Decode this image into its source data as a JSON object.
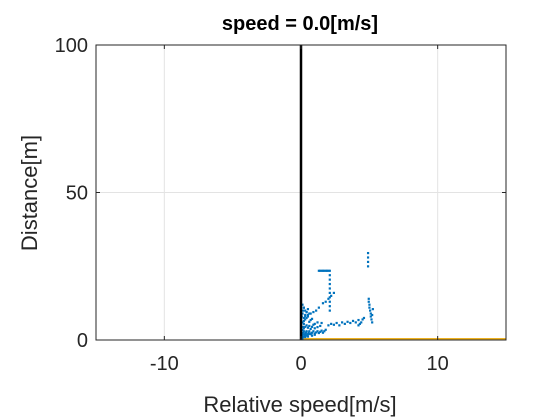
{
  "chart_data": {
    "type": "scatter",
    "title": "speed = 0.0[m/s]",
    "xlabel": "Relative speed[m/s]",
    "ylabel": "Distance[m]",
    "xlim": [
      -15,
      15
    ],
    "ylim": [
      0,
      100
    ],
    "xticks": [
      -10,
      0,
      10
    ],
    "yticks": [
      0,
      50,
      100
    ],
    "xtick_labels": [
      "-10",
      "0",
      "10"
    ],
    "ytick_labels": [
      "0",
      "50",
      "100"
    ],
    "grid": true,
    "colors": {
      "points": "#0072BD",
      "vertical_line": "#000000",
      "baseline": "#EDB120"
    },
    "reference_lines": {
      "vertical_x": 0,
      "baseline_y": 0,
      "baseline_x_range": [
        0,
        15
      ]
    },
    "series": [
      {
        "x": [
          0.05,
          0.1,
          0.15,
          0.2,
          0.1,
          0.25,
          0.3,
          0.35,
          0.4,
          0.45,
          0.5,
          0.55,
          0.6,
          0.7,
          0.8,
          0.9,
          1.0,
          1.1,
          1.2,
          1.3,
          1.4,
          1.5,
          1.6,
          1.7,
          1.8,
          0.2,
          0.3,
          0.4,
          0.5,
          0.6,
          0.7,
          0.8,
          0.9,
          1.0,
          1.2,
          1.4,
          0.1,
          0.2,
          0.3,
          0.4,
          0.5,
          0.6,
          0.7,
          0.8,
          1.0,
          1.2,
          1.5,
          2.0,
          2.2,
          2.4,
          2.6,
          2.8,
          3.0,
          3.2,
          3.4,
          3.6,
          3.8,
          4.0,
          4.2,
          0.1,
          0.15,
          0.2,
          0.3,
          0.4,
          0.5,
          0.6,
          0.1,
          0.2,
          0.3,
          0.4,
          0.2,
          0.3,
          0.5,
          0.7,
          0.9,
          1.1,
          1.3,
          1.6,
          1.8,
          2.0,
          2.2,
          2.4,
          1.3,
          1.4,
          1.5,
          1.6,
          1.7,
          1.8,
          1.9,
          2.0,
          2.1,
          2.1,
          2.1,
          2.1,
          2.1,
          2.1,
          2.1,
          2.1,
          2.1,
          2.1,
          4.9,
          4.9,
          4.9,
          4.9,
          4.95,
          4.95,
          5.0,
          5.0,
          5.05,
          5.1,
          5.1,
          5.15,
          5.2,
          5.2,
          5.25,
          4.2,
          4.3,
          4.4,
          4.5,
          4.6,
          0.05,
          0.1,
          0.05,
          0.1,
          0.05,
          0.1,
          0.05,
          0.1,
          0.15,
          0.2,
          0.05,
          0.1,
          0.3,
          0.5,
          0.8,
          1.0,
          0.15,
          0.25,
          0.35,
          0.45,
          0.6,
          0.75
        ],
        "y": [
          1.5,
          2.0,
          2.5,
          3.0,
          3.5,
          1.8,
          2.2,
          2.6,
          3.0,
          1.5,
          2.0,
          2.5,
          3.0,
          2.0,
          2.5,
          3.0,
          2.2,
          2.6,
          3.0,
          2.4,
          2.8,
          3.2,
          2.5,
          3.0,
          3.5,
          4.0,
          4.5,
          5.0,
          4.2,
          4.8,
          3.8,
          4.5,
          5.2,
          4.0,
          4.4,
          4.8,
          6.0,
          6.5,
          7.0,
          7.5,
          8.0,
          6.2,
          6.8,
          7.2,
          5.5,
          6.0,
          5.8,
          5.0,
          5.5,
          5.2,
          5.8,
          5.0,
          6.0,
          5.5,
          6.2,
          5.8,
          6.5,
          6.0,
          6.8,
          9.0,
          10.0,
          11.0,
          8.5,
          9.5,
          10.5,
          9.0,
          12.0,
          11.0,
          10.0,
          9.5,
          7.5,
          8.0,
          8.5,
          9.0,
          9.5,
          10.0,
          11.0,
          12.5,
          13.0,
          14.0,
          15.0,
          16.0,
          23.5,
          23.5,
          23.5,
          23.5,
          23.5,
          23.5,
          23.5,
          23.5,
          23.5,
          22.0,
          20.5,
          19.0,
          17.5,
          16.0,
          14.5,
          13.0,
          11.5,
          10.0,
          29.5,
          28.0,
          26.5,
          25.0,
          14.0,
          13.0,
          12.0,
          11.0,
          10.0,
          9.0,
          8.0,
          7.0,
          6.0,
          8.5,
          10.5,
          5.0,
          5.5,
          6.0,
          7.0,
          7.5,
          0.5,
          0.8,
          1.0,
          1.2,
          1.4,
          0.6,
          2.5,
          3.5,
          4.5,
          5.5,
          8.0,
          9.0,
          1.0,
          1.2,
          1.5,
          1.8,
          1.1,
          1.3,
          1.6,
          1.9,
          2.1,
          2.3
        ]
      }
    ]
  }
}
